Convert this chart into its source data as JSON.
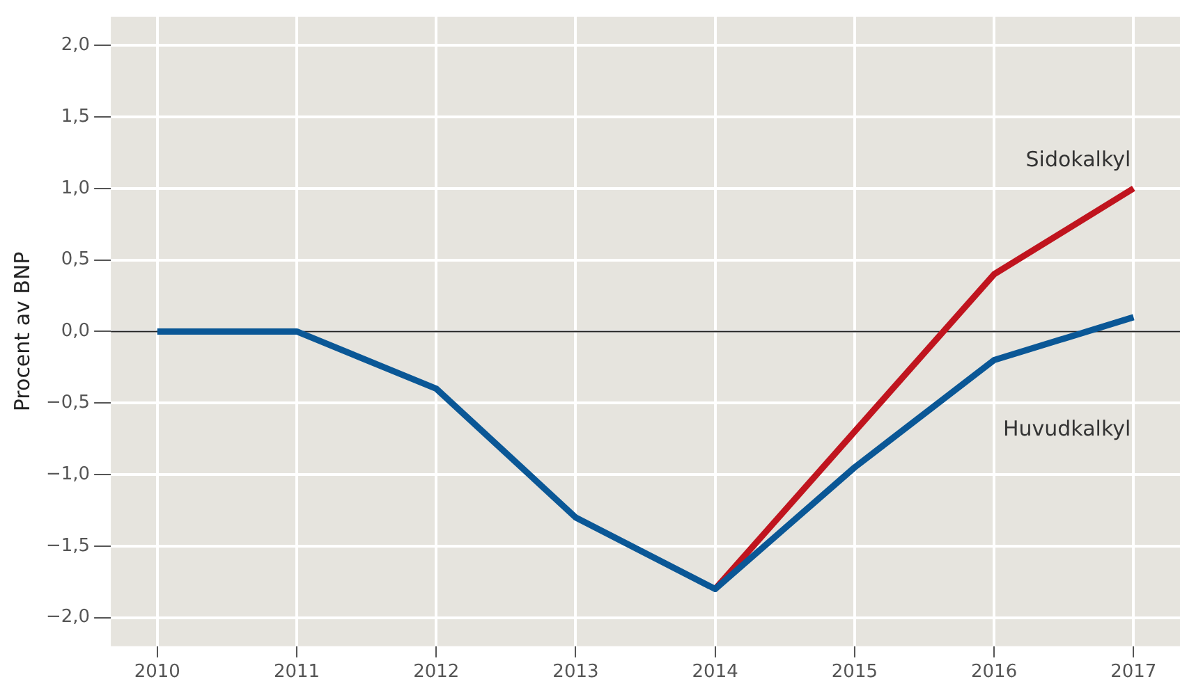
{
  "chart_data": {
    "type": "line",
    "ylabel": "Procent av BNP",
    "x": [
      2010,
      2011,
      2012,
      2013,
      2014,
      2015,
      2016,
      2017
    ],
    "series": [
      {
        "name": "Huvudkalkyl",
        "color": "#0a5796",
        "values": [
          0.0,
          0.0,
          -0.4,
          -1.3,
          -1.8,
          -0.95,
          -0.2,
          0.1
        ]
      },
      {
        "name": "Sidokalkyl",
        "color": "#c0141e",
        "values": [
          null,
          null,
          null,
          null,
          -1.8,
          -0.7,
          0.4,
          1.0
        ]
      }
    ],
    "xlim": [
      2009.667,
      2017.333
    ],
    "xticks": [
      2010,
      2011,
      2012,
      2013,
      2014,
      2015,
      2016,
      2017
    ],
    "ylim": [
      -2.2,
      2.2
    ],
    "yticks": [
      {
        "value": -2,
        "label": "−2,0"
      },
      {
        "value": -1.5,
        "label": "−1,5"
      },
      {
        "value": -1,
        "label": "−1,0"
      },
      {
        "value": -0.5,
        "label": "−0,5"
      },
      {
        "value": 0,
        "label": "0,0"
      },
      {
        "value": 0.5,
        "label": "0,5"
      },
      {
        "value": 1,
        "label": "1,0"
      },
      {
        "value": 1.5,
        "label": "1,5"
      },
      {
        "value": 2,
        "label": "2,0"
      }
    ],
    "ref_lines": [
      {
        "axis": "y",
        "value": 0,
        "color": "#222222"
      }
    ],
    "grid": true,
    "legend": false,
    "marker": "none",
    "line_style": "solid"
  }
}
